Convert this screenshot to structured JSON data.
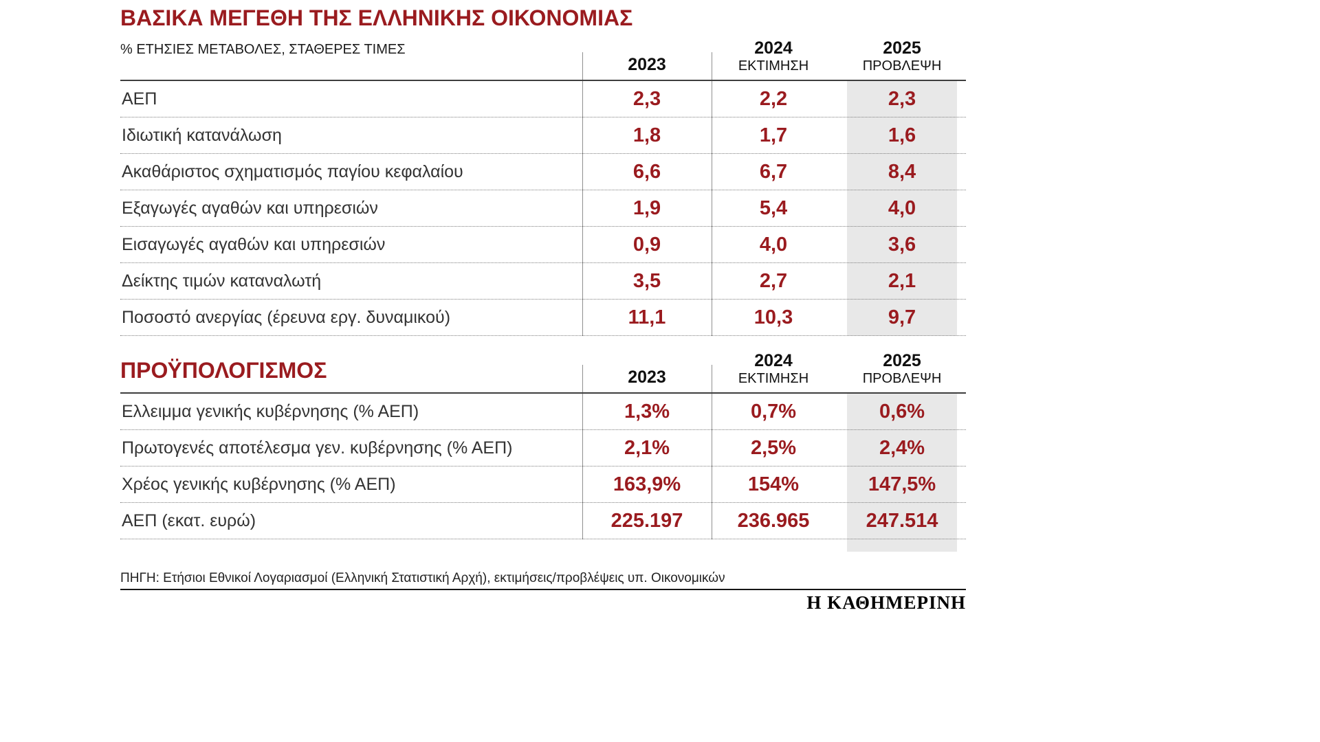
{
  "columns": {
    "y2023": "2023",
    "y2024": "2024",
    "estimate_label": "ΕΚΤΙΜΗΣΗ",
    "y2025": "2025",
    "forecast_label": "ΠΡΟΒΛΕΨΗ"
  },
  "chart_data": [
    {
      "type": "table",
      "title": "ΒΑΣΙΚΑ ΜΕΓΕΘΗ ΤΗΣ ΕΛΛΗΝΙΚΗΣ ΟΙΚΟΝΟΜΙΑΣ",
      "subtitle": "% ΕΤΗΣΙΕΣ ΜΕΤΑΒΟΛΕΣ, ΣΤΑΘΕΡΕΣ ΤΙΜΕΣ",
      "columns": [
        "",
        "2023",
        "2024 ΕΚΤΙΜΗΣΗ",
        "2025 ΠΡΟΒΛΕΨΗ"
      ],
      "rows": [
        {
          "label": "ΑΕΠ",
          "values": [
            "2,3",
            "2,2",
            "2,3"
          ]
        },
        {
          "label": "Ιδιωτική κατανάλωση",
          "values": [
            "1,8",
            "1,7",
            "1,6"
          ]
        },
        {
          "label": "Ακαθάριστος σχηματισμός παγίου κεφαλαίου",
          "values": [
            "6,6",
            "6,7",
            "8,4"
          ]
        },
        {
          "label": "Εξαγωγές αγαθών και υπηρεσιών",
          "values": [
            "1,9",
            "5,4",
            "4,0"
          ]
        },
        {
          "label": "Εισαγωγές αγαθών και υπηρεσιών",
          "values": [
            "0,9",
            "4,0",
            "3,6"
          ]
        },
        {
          "label": "Δείκτης τιμών καταναλωτή",
          "values": [
            "3,5",
            "2,7",
            "2,1"
          ]
        },
        {
          "label": "Ποσοστό ανεργίας (έρευνα εργ. δυναμικού)",
          "values": [
            "11,1",
            "10,3",
            "9,7"
          ]
        }
      ]
    },
    {
      "type": "table",
      "title": "ΠΡΟΫΠΟΛΟΓΙΣΜΟΣ",
      "columns": [
        "",
        "2023",
        "2024 ΕΚΤΙΜΗΣΗ",
        "2025 ΠΡΟΒΛΕΨΗ"
      ],
      "rows": [
        {
          "label": "Ελλειμμα γενικής κυβέρνησης (% ΑΕΠ)",
          "values": [
            "1,3%",
            "0,7%",
            "0,6%"
          ]
        },
        {
          "label": "Πρωτογενές αποτέλεσμα γεν. κυβέρνησης (% ΑΕΠ)",
          "values": [
            "2,1%",
            "2,5%",
            "2,4%"
          ]
        },
        {
          "label": "Χρέος γενικής κυβέρνησης (% ΑΕΠ)",
          "values": [
            "163,9%",
            "154%",
            "147,5%"
          ]
        },
        {
          "label": "ΑΕΠ (εκατ. ευρώ)",
          "values": [
            "225.197",
            "236.965",
            "247.514"
          ]
        }
      ]
    }
  ],
  "footer": {
    "source": "ΠΗΓΗ: Ετήσιοι Εθνικοί Λογαριασμοί (Ελληνική Στατιστική Αρχή), εκτιμήσεις/προβλέψεις υπ. Οικονομικών",
    "logo": "Η ΚΑΘΗΜΕΡΙΝΗ"
  },
  "colors": {
    "accent": "#9a1b1f",
    "highlight_column_bg": "#e8e8e8"
  }
}
